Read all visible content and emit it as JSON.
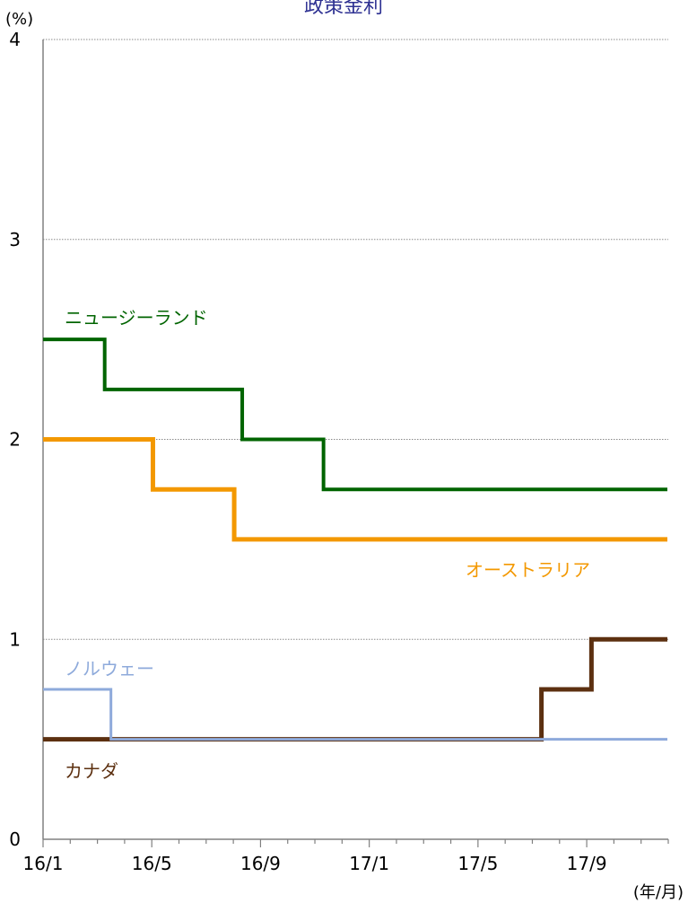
{
  "chart_data": {
    "type": "line",
    "title": "政策金利",
    "y_unit": "(%)",
    "x_unit": "(年/月)",
    "ylim": [
      0,
      4
    ],
    "y_ticks": [
      0,
      1,
      2,
      3,
      4
    ],
    "x_tick_labels": [
      "16/1",
      "16/5",
      "16/9",
      "17/1",
      "17/5",
      "17/9"
    ],
    "grid": "horizontal dotted",
    "series": [
      {
        "name": "ニュージーランド",
        "color": "#006400",
        "points": [
          {
            "x": "2016-01-01",
            "y": 2.5
          },
          {
            "x": "2016-03-10",
            "y": 2.25
          },
          {
            "x": "2016-08-11",
            "y": 2.0
          },
          {
            "x": "2016-11-10",
            "y": 1.75
          },
          {
            "x": "2017-11-30",
            "y": 1.75
          }
        ]
      },
      {
        "name": "オーストラリア",
        "color": "#f39800",
        "points": [
          {
            "x": "2016-01-01",
            "y": 2.0
          },
          {
            "x": "2016-05-03",
            "y": 1.75
          },
          {
            "x": "2016-08-02",
            "y": 1.5
          },
          {
            "x": "2017-11-30",
            "y": 1.5
          }
        ]
      },
      {
        "name": "ノルウェー",
        "color": "#8eaadb",
        "points": [
          {
            "x": "2016-01-01",
            "y": 0.75
          },
          {
            "x": "2016-03-17",
            "y": 0.5
          },
          {
            "x": "2017-11-30",
            "y": 0.5
          }
        ]
      },
      {
        "name": "カナダ",
        "color": "#5c3010",
        "points": [
          {
            "x": "2016-01-01",
            "y": 0.5
          },
          {
            "x": "2017-07-12",
            "y": 0.75
          },
          {
            "x": "2017-09-06",
            "y": 1.0
          },
          {
            "x": "2017-11-30",
            "y": 1.0
          }
        ]
      }
    ]
  }
}
